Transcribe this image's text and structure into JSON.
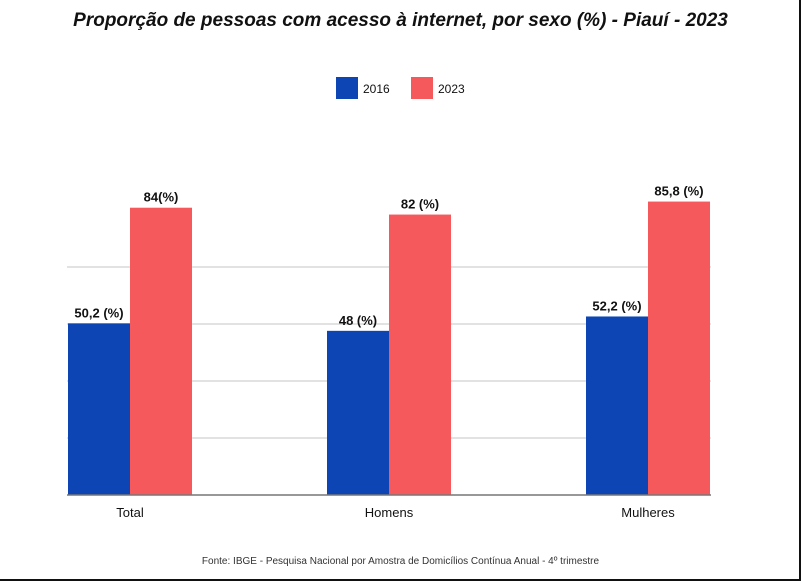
{
  "colors": {
    "s2016": "#0e45b4",
    "s2023": "#f5595c",
    "grid": "#c4c4c4",
    "axis": "#777777"
  },
  "chart_data": {
    "type": "bar",
    "title": "Proporção de pessoas  com acesso à internet, por sexo (%) - Piauí - 2023",
    "categories": [
      "Total",
      "Homens",
      "Mulheres"
    ],
    "series": [
      {
        "name": "2016",
        "values": [
          50.2,
          48,
          52.2
        ],
        "labels": [
          "50,2 (%)",
          "48 (%)",
          "52,2 (%)"
        ]
      },
      {
        "name": "2023",
        "values": [
          84,
          82,
          85.8
        ],
        "labels": [
          "84(%)",
          "82 (%)",
          "85,8 (%)"
        ]
      }
    ],
    "ylim": [
      0,
      100
    ],
    "legend_position": "top",
    "grid": true
  },
  "footer": "Fonte: IBGE - Pesquisa Nacional por  Amostra de Domicílios Contínua Anual - 4º trimestre"
}
